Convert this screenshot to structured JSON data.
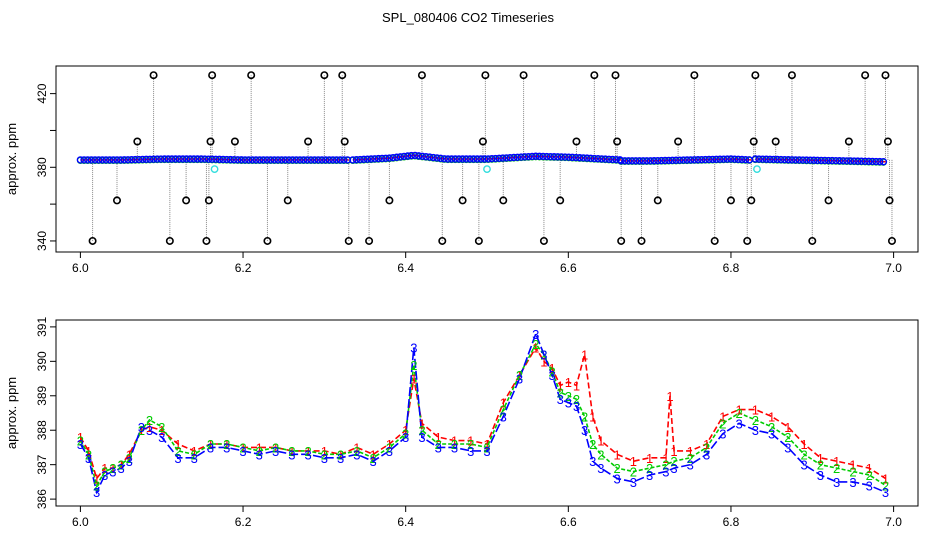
{
  "chart_data": [
    {
      "type": "scatter",
      "title": "SPL_080406  CO2 Timeseries",
      "xlabel": "",
      "ylabel": "approx. ppm",
      "xlim": [
        5.97,
        7.03
      ],
      "ylim": [
        334,
        435
      ],
      "x_ticks": [
        "6.0",
        "6.2",
        "6.4",
        "6.6",
        "6.8",
        "7.0"
      ],
      "y_ticks": [
        "340",
        "",
        "380",
        "",
        "420"
      ],
      "y_tick_values": [
        340,
        360,
        380,
        400,
        420
      ],
      "colors": {
        "series1": "#ff0000",
        "series2": "#00cc00",
        "series3": "#0000ff",
        "outlier": "#000000",
        "cyan": "#33dddd"
      },
      "baseline_segments": [
        {
          "x": [
            6.0,
            6.05,
            6.1,
            6.15,
            6.2,
            6.25,
            6.3,
            6.33
          ],
          "y": [
            384,
            384,
            384.5,
            384.5,
            384,
            384,
            384,
            384
          ]
        },
        {
          "x": [
            6.335,
            6.38,
            6.41,
            6.45,
            6.5,
            6.56,
            6.6,
            6.665
          ],
          "y": [
            384,
            385,
            386.5,
            384.5,
            384.5,
            386,
            385.5,
            384
          ]
        },
        {
          "x": [
            6.665,
            6.7,
            6.75,
            6.8,
            6.825
          ],
          "y": [
            383.5,
            383.5,
            384,
            384.5,
            384
          ]
        },
        {
          "x": [
            6.83,
            6.88,
            6.94,
            6.99
          ],
          "y": [
            384.5,
            384,
            383.5,
            383
          ]
        }
      ],
      "spikes": [
        {
          "x": 6.015,
          "y": 340
        },
        {
          "x": 6.045,
          "y": 362
        },
        {
          "x": 6.07,
          "y": 394
        },
        {
          "x": 6.09,
          "y": 430
        },
        {
          "x": 6.11,
          "y": 340
        },
        {
          "x": 6.13,
          "y": 362
        },
        {
          "x": 6.155,
          "y": 340
        },
        {
          "x": 6.158,
          "y": 362
        },
        {
          "x": 6.16,
          "y": 394
        },
        {
          "x": 6.162,
          "y": 430
        },
        {
          "x": 6.19,
          "y": 394
        },
        {
          "x": 6.21,
          "y": 430
        },
        {
          "x": 6.23,
          "y": 340
        },
        {
          "x": 6.255,
          "y": 362
        },
        {
          "x": 6.28,
          "y": 394
        },
        {
          "x": 6.3,
          "y": 430
        },
        {
          "x": 6.322,
          "y": 430
        },
        {
          "x": 6.325,
          "y": 394
        },
        {
          "x": 6.33,
          "y": 340
        },
        {
          "x": 6.355,
          "y": 340
        },
        {
          "x": 6.38,
          "y": 362
        },
        {
          "x": 6.42,
          "y": 430
        },
        {
          "x": 6.445,
          "y": 340
        },
        {
          "x": 6.47,
          "y": 362
        },
        {
          "x": 6.49,
          "y": 340
        },
        {
          "x": 6.495,
          "y": 394
        },
        {
          "x": 6.498,
          "y": 430
        },
        {
          "x": 6.52,
          "y": 362
        },
        {
          "x": 6.545,
          "y": 430
        },
        {
          "x": 6.57,
          "y": 340
        },
        {
          "x": 6.59,
          "y": 362
        },
        {
          "x": 6.61,
          "y": 394
        },
        {
          "x": 6.632,
          "y": 430
        },
        {
          "x": 6.658,
          "y": 430
        },
        {
          "x": 6.66,
          "y": 394
        },
        {
          "x": 6.665,
          "y": 340
        },
        {
          "x": 6.69,
          "y": 340
        },
        {
          "x": 6.71,
          "y": 362
        },
        {
          "x": 6.735,
          "y": 394
        },
        {
          "x": 6.755,
          "y": 430
        },
        {
          "x": 6.78,
          "y": 340
        },
        {
          "x": 6.8,
          "y": 362
        },
        {
          "x": 6.82,
          "y": 340
        },
        {
          "x": 6.825,
          "y": 362
        },
        {
          "x": 6.828,
          "y": 394
        },
        {
          "x": 6.83,
          "y": 430
        },
        {
          "x": 6.855,
          "y": 394
        },
        {
          "x": 6.875,
          "y": 430
        },
        {
          "x": 6.9,
          "y": 340
        },
        {
          "x": 6.92,
          "y": 362
        },
        {
          "x": 6.945,
          "y": 394
        },
        {
          "x": 6.965,
          "y": 430
        },
        {
          "x": 6.99,
          "y": 430
        },
        {
          "x": 6.993,
          "y": 394
        },
        {
          "x": 6.995,
          "y": 362
        },
        {
          "x": 6.998,
          "y": 340
        }
      ],
      "cyan_points": [
        {
          "x": 6.165,
          "y": 379
        },
        {
          "x": 6.5,
          "y": 379
        },
        {
          "x": 6.832,
          "y": 379
        }
      ]
    },
    {
      "type": "line",
      "title": "",
      "xlabel": "",
      "ylabel": "approx. ppm",
      "xlim": [
        5.97,
        7.03
      ],
      "ylim": [
        385.8,
        391.2
      ],
      "x_ticks": [
        "6.0",
        "6.2",
        "6.4",
        "6.6",
        "6.8",
        "7.0"
      ],
      "y_ticks": [
        "386",
        "387",
        "388",
        "389",
        "390",
        "391"
      ],
      "y_tick_values": [
        386,
        387,
        388,
        389,
        390,
        391
      ],
      "series": [
        {
          "name": "1",
          "color": "#ff0000",
          "x": [
            6.0,
            6.01,
            6.02,
            6.03,
            6.04,
            6.05,
            6.06,
            6.075,
            6.085,
            6.1,
            6.12,
            6.14,
            6.16,
            6.18,
            6.2,
            6.22,
            6.24,
            6.26,
            6.28,
            6.3,
            6.32,
            6.34,
            6.36,
            6.38,
            6.4,
            6.41,
            6.42,
            6.44,
            6.46,
            6.48,
            6.5,
            6.52,
            6.54,
            6.56,
            6.57,
            6.58,
            6.59,
            6.6,
            6.61,
            6.62,
            6.63,
            6.64,
            6.66,
            6.68,
            6.7,
            6.72,
            6.725,
            6.73,
            6.75,
            6.77,
            6.79,
            6.81,
            6.83,
            6.85,
            6.87,
            6.89,
            6.91,
            6.93,
            6.95,
            6.97,
            6.99
          ],
          "y": [
            387.8,
            387.4,
            386.6,
            386.9,
            386.9,
            387.0,
            387.3,
            388.0,
            388.1,
            388.0,
            387.6,
            387.4,
            387.6,
            387.6,
            387.5,
            387.5,
            387.5,
            387.4,
            387.4,
            387.4,
            387.3,
            387.5,
            387.3,
            387.6,
            388.0,
            389.5,
            388.2,
            387.8,
            387.7,
            387.7,
            387.6,
            388.8,
            389.6,
            390.4,
            390.0,
            389.8,
            389.3,
            389.4,
            389.3,
            390.2,
            388.4,
            387.7,
            387.3,
            387.1,
            387.2,
            387.2,
            389.0,
            387.4,
            387.4,
            387.6,
            388.4,
            388.6,
            388.6,
            388.4,
            388.1,
            387.6,
            387.2,
            387.1,
            387.0,
            386.9,
            386.6
          ]
        },
        {
          "name": "2",
          "color": "#00cc00",
          "x": [
            6.0,
            6.01,
            6.02,
            6.03,
            6.04,
            6.05,
            6.06,
            6.075,
            6.085,
            6.1,
            6.12,
            6.14,
            6.16,
            6.18,
            6.2,
            6.22,
            6.24,
            6.26,
            6.28,
            6.3,
            6.32,
            6.34,
            6.36,
            6.38,
            6.4,
            6.41,
            6.42,
            6.44,
            6.46,
            6.48,
            6.5,
            6.52,
            6.54,
            6.56,
            6.57,
            6.58,
            6.59,
            6.6,
            6.61,
            6.62,
            6.63,
            6.64,
            6.66,
            6.68,
            6.7,
            6.72,
            6.73,
            6.75,
            6.77,
            6.79,
            6.81,
            6.83,
            6.85,
            6.87,
            6.89,
            6.91,
            6.93,
            6.95,
            6.97,
            6.99
          ],
          "y": [
            387.7,
            387.3,
            386.4,
            386.8,
            386.9,
            387.0,
            387.2,
            388.0,
            388.3,
            388.1,
            387.4,
            387.3,
            387.6,
            387.6,
            387.5,
            387.4,
            387.5,
            387.4,
            387.4,
            387.3,
            387.3,
            387.4,
            387.2,
            387.5,
            387.9,
            389.9,
            388.0,
            387.6,
            387.6,
            387.6,
            387.5,
            388.6,
            389.6,
            390.5,
            390.2,
            389.7,
            389.1,
            389.0,
            388.9,
            388.4,
            387.6,
            387.3,
            386.9,
            386.8,
            386.9,
            387.0,
            387.1,
            387.2,
            387.5,
            388.2,
            388.5,
            388.3,
            388.1,
            387.8,
            387.3,
            387.0,
            386.9,
            386.8,
            386.7,
            386.4
          ]
        },
        {
          "name": "3",
          "color": "#0000ff",
          "x": [
            6.0,
            6.01,
            6.02,
            6.03,
            6.04,
            6.05,
            6.06,
            6.075,
            6.085,
            6.1,
            6.12,
            6.14,
            6.16,
            6.18,
            6.2,
            6.22,
            6.24,
            6.26,
            6.28,
            6.3,
            6.32,
            6.34,
            6.36,
            6.38,
            6.4,
            6.41,
            6.42,
            6.44,
            6.46,
            6.48,
            6.5,
            6.52,
            6.54,
            6.56,
            6.57,
            6.58,
            6.59,
            6.6,
            6.61,
            6.62,
            6.63,
            6.64,
            6.66,
            6.68,
            6.7,
            6.72,
            6.73,
            6.75,
            6.77,
            6.79,
            6.81,
            6.83,
            6.85,
            6.87,
            6.89,
            6.91,
            6.93,
            6.95,
            6.97,
            6.99
          ],
          "y": [
            387.6,
            387.2,
            386.2,
            386.7,
            386.8,
            386.9,
            387.1,
            388.1,
            388.0,
            387.8,
            387.2,
            387.2,
            387.5,
            387.5,
            387.4,
            387.3,
            387.4,
            387.3,
            387.3,
            387.2,
            387.2,
            387.3,
            387.1,
            387.4,
            387.8,
            390.4,
            387.8,
            387.5,
            387.5,
            387.4,
            387.4,
            388.4,
            389.5,
            390.8,
            390.2,
            389.6,
            388.9,
            388.8,
            388.7,
            388.0,
            387.1,
            386.9,
            386.6,
            386.5,
            386.7,
            386.8,
            386.9,
            387.0,
            387.3,
            387.9,
            388.2,
            388.0,
            387.9,
            387.5,
            387.0,
            386.7,
            386.5,
            386.5,
            386.4,
            386.2
          ]
        }
      ]
    }
  ]
}
